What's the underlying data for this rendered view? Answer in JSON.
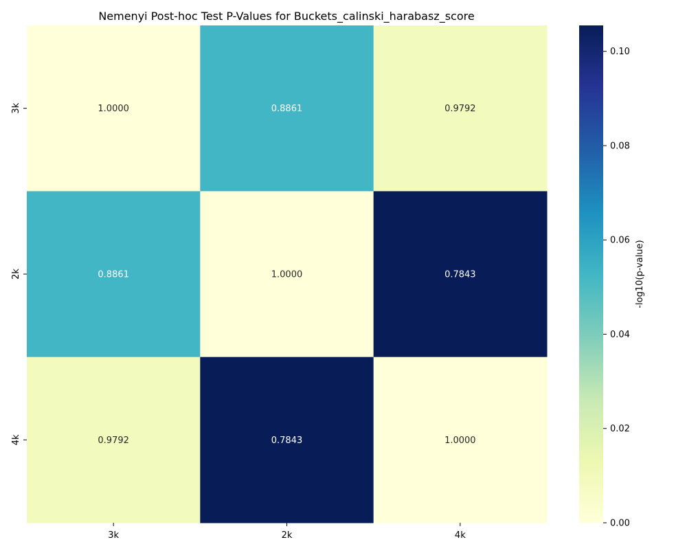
{
  "chart_data": {
    "type": "heatmap",
    "title": "Nemenyi Post-hoc Test P-Values for Buckets_calinski_harabasz_score",
    "rows": [
      "3k",
      "2k",
      "4k"
    ],
    "columns": [
      "3k",
      "2k",
      "4k"
    ],
    "p_values": [
      [
        1.0,
        0.8861,
        0.9792
      ],
      [
        0.8861,
        1.0,
        0.7843
      ],
      [
        0.9792,
        0.7843,
        1.0
      ]
    ],
    "cell_labels": [
      [
        "1.0000",
        "0.8861",
        "0.9792"
      ],
      [
        "0.8861",
        "1.0000",
        "0.7843"
      ],
      [
        "0.9792",
        "0.7843",
        "1.0000"
      ]
    ],
    "color_metric": "-log10(p-value)",
    "colormap": "YlGnBu",
    "colorbar": {
      "label": "-log10(p-value)",
      "range": [
        0,
        0.1055
      ],
      "ticks": [
        "0.00",
        "0.02",
        "0.04",
        "0.06",
        "0.08",
        "0.10"
      ]
    }
  }
}
